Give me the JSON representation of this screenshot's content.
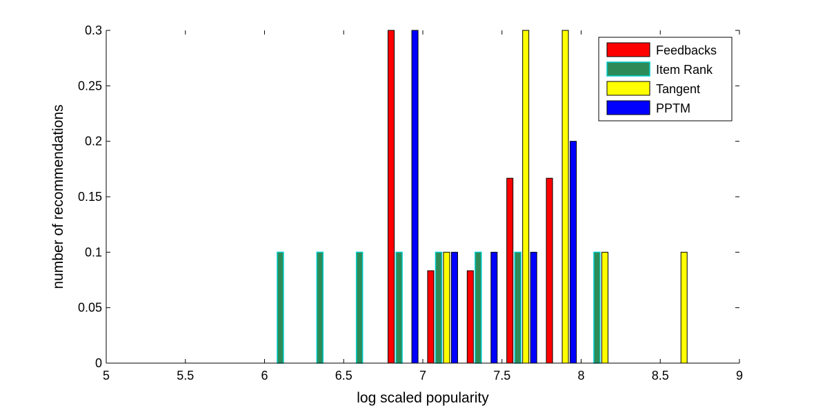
{
  "chart_data": {
    "type": "bar",
    "xlabel": "log scaled popularity",
    "ylabel": "number of recommendations",
    "xlim": [
      5,
      9
    ],
    "ylim": [
      0,
      0.3
    ],
    "xticks": [
      "5",
      "5.5",
      "6",
      "6.5",
      "7",
      "7.5",
      "8",
      "8.5",
      "9"
    ],
    "yticks": [
      "0",
      "0.05",
      "0.1",
      "0.15",
      "0.2",
      "0.25",
      "0.3"
    ],
    "grid": false,
    "legend_position": "top-right",
    "bin_centers": [
      5.125,
      5.375,
      5.625,
      5.875,
      6.125,
      6.375,
      6.625,
      6.875,
      7.125,
      7.375,
      7.625,
      7.875,
      8.125,
      8.375,
      8.625,
      8.875
    ],
    "series": [
      {
        "name": "Feedbacks",
        "color": "#ff0000",
        "values": [
          0,
          0,
          0,
          0,
          0,
          0,
          0,
          0.3,
          0.0833,
          0.0833,
          0.1667,
          0.1667,
          0,
          0,
          0,
          0
        ]
      },
      {
        "name": "Item Rank",
        "color": "#2e8b57",
        "edge": "#00cccc",
        "values": [
          0,
          0,
          0,
          0,
          0.1,
          0.1,
          0.1,
          0.1,
          0.1,
          0.1,
          0.1,
          0,
          0.1,
          0,
          0,
          0
        ]
      },
      {
        "name": "Tangent",
        "color": "#ffff00",
        "values": [
          0,
          0,
          0,
          0,
          0,
          0,
          0,
          0,
          0.1,
          0,
          0.3,
          0.3,
          0.1,
          0,
          0.1,
          0
        ]
      },
      {
        "name": "PPTM",
        "color": "#0000ff",
        "values": [
          0,
          0,
          0,
          0,
          0,
          0,
          0,
          0.3,
          0.1,
          0.1,
          0.1,
          0.2,
          0,
          0,
          0,
          0
        ]
      }
    ]
  }
}
